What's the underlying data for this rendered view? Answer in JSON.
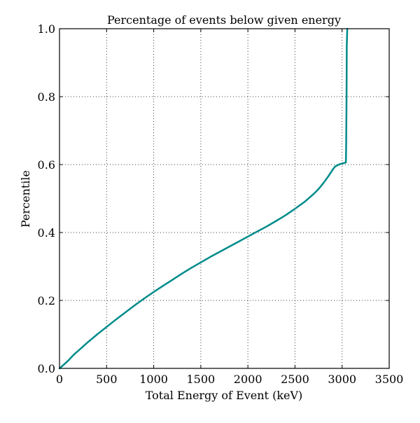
{
  "chart_data": {
    "type": "line",
    "title": "Percentage of events below given energy",
    "xlabel": "Total Energy of Event (keV)",
    "ylabel": "Percentile",
    "xlim": [
      0,
      3500
    ],
    "ylim": [
      0,
      1.0
    ],
    "x_ticks": [
      0,
      500,
      1000,
      1500,
      2000,
      2500,
      3000,
      3500
    ],
    "x_tick_labels": [
      "0",
      "500",
      "1000",
      "1500",
      "2000",
      "2500",
      "3000",
      "3500"
    ],
    "y_ticks": [
      0.0,
      0.2,
      0.4,
      0.6,
      0.8,
      1.0
    ],
    "y_tick_labels": [
      "0.0",
      "0.2",
      "0.4",
      "0.6",
      "0.8",
      "1.0"
    ],
    "grid": true,
    "colors": {
      "line": "#008b8b"
    },
    "series": [
      {
        "x": [
          0,
          50,
          100,
          150,
          200,
          300,
          400,
          500,
          600,
          700,
          800,
          900,
          1000,
          1100,
          1200,
          1300,
          1400,
          1500,
          1600,
          1700,
          1800,
          1900,
          2000,
          2100,
          2200,
          2300,
          2400,
          2500,
          2600,
          2700,
          2750,
          2800,
          2850,
          2900,
          2925,
          2950,
          2975,
          3000,
          3025,
          3040,
          3043,
          3046,
          3048,
          3050,
          3055
        ],
        "y": [
          0.0,
          0.012,
          0.025,
          0.04,
          0.052,
          0.077,
          0.1,
          0.122,
          0.144,
          0.165,
          0.186,
          0.206,
          0.225,
          0.243,
          0.261,
          0.279,
          0.296,
          0.312,
          0.328,
          0.343,
          0.358,
          0.373,
          0.388,
          0.403,
          0.418,
          0.434,
          0.451,
          0.47,
          0.49,
          0.514,
          0.528,
          0.545,
          0.564,
          0.585,
          0.594,
          0.598,
          0.601,
          0.603,
          0.605,
          0.606,
          0.65,
          0.75,
          0.85,
          0.95,
          1.0
        ]
      }
    ]
  }
}
